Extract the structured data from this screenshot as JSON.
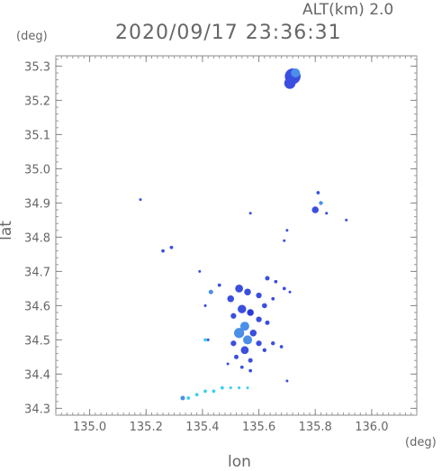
{
  "header": {
    "altitude": "ALT(km)  2.0",
    "datetime": "2020/09/17 23:36:31"
  },
  "chart_data": {
    "type": "heatmap",
    "xlabel": "lon",
    "ylabel": "lat",
    "x_unit": "(deg)",
    "y_unit": "(deg)",
    "xlim": [
      134.88,
      136.16
    ],
    "ylim": [
      34.28,
      35.33
    ],
    "x_ticks": [
      "135.0",
      "135.2",
      "135.4",
      "135.6",
      "135.8",
      "136.0"
    ],
    "y_ticks": [
      "34.3",
      "34.4",
      "34.5",
      "34.6",
      "34.7",
      "34.8",
      "34.9",
      "35.0",
      "35.1",
      "35.2",
      "35.3"
    ],
    "grid": false,
    "colors": {
      "low": "#38d0f0",
      "mid": "#4a8fe8",
      "high": "#3a4fe0",
      "dense": "#2a3ad8",
      "axis": "#888888"
    },
    "cells": [
      {
        "lon": 135.72,
        "lat": 35.27,
        "r": 0.028,
        "level": "high"
      },
      {
        "lon": 135.71,
        "lat": 35.25,
        "r": 0.02,
        "level": "high"
      },
      {
        "lon": 135.73,
        "lat": 35.28,
        "r": 0.016,
        "level": "mid"
      },
      {
        "lon": 135.81,
        "lat": 34.93,
        "r": 0.006,
        "level": "high"
      },
      {
        "lon": 135.8,
        "lat": 34.88,
        "r": 0.012,
        "level": "high"
      },
      {
        "lon": 135.82,
        "lat": 34.9,
        "r": 0.007,
        "level": "mid"
      },
      {
        "lon": 135.84,
        "lat": 34.87,
        "r": 0.005,
        "level": "high"
      },
      {
        "lon": 135.91,
        "lat": 34.85,
        "r": 0.004,
        "level": "high"
      },
      {
        "lon": 135.7,
        "lat": 34.82,
        "r": 0.004,
        "level": "high"
      },
      {
        "lon": 135.69,
        "lat": 34.79,
        "r": 0.004,
        "level": "high"
      },
      {
        "lon": 135.26,
        "lat": 34.76,
        "r": 0.006,
        "level": "high"
      },
      {
        "lon": 135.29,
        "lat": 34.77,
        "r": 0.006,
        "level": "high"
      },
      {
        "lon": 135.63,
        "lat": 34.68,
        "r": 0.008,
        "level": "high"
      },
      {
        "lon": 135.66,
        "lat": 34.67,
        "r": 0.006,
        "level": "high"
      },
      {
        "lon": 135.69,
        "lat": 34.65,
        "r": 0.006,
        "level": "high"
      },
      {
        "lon": 135.71,
        "lat": 34.64,
        "r": 0.004,
        "level": "high"
      },
      {
        "lon": 135.53,
        "lat": 34.65,
        "r": 0.014,
        "level": "high"
      },
      {
        "lon": 135.56,
        "lat": 34.64,
        "r": 0.012,
        "level": "high"
      },
      {
        "lon": 135.5,
        "lat": 34.62,
        "r": 0.012,
        "level": "high"
      },
      {
        "lon": 135.43,
        "lat": 34.64,
        "r": 0.008,
        "level": "mid"
      },
      {
        "lon": 135.46,
        "lat": 34.66,
        "r": 0.006,
        "level": "high"
      },
      {
        "lon": 135.41,
        "lat": 34.6,
        "r": 0.005,
        "level": "high"
      },
      {
        "lon": 135.6,
        "lat": 34.63,
        "r": 0.01,
        "level": "high"
      },
      {
        "lon": 135.62,
        "lat": 34.6,
        "r": 0.009,
        "level": "high"
      },
      {
        "lon": 135.65,
        "lat": 34.62,
        "r": 0.006,
        "level": "high"
      },
      {
        "lon": 135.54,
        "lat": 34.59,
        "r": 0.015,
        "level": "high"
      },
      {
        "lon": 135.57,
        "lat": 34.58,
        "r": 0.012,
        "level": "dense"
      },
      {
        "lon": 135.51,
        "lat": 34.57,
        "r": 0.01,
        "level": "high"
      },
      {
        "lon": 135.6,
        "lat": 34.56,
        "r": 0.01,
        "level": "high"
      },
      {
        "lon": 135.63,
        "lat": 34.55,
        "r": 0.008,
        "level": "high"
      },
      {
        "lon": 135.55,
        "lat": 34.54,
        "r": 0.016,
        "level": "mid"
      },
      {
        "lon": 135.53,
        "lat": 34.52,
        "r": 0.018,
        "level": "mid"
      },
      {
        "lon": 135.56,
        "lat": 34.5,
        "r": 0.016,
        "level": "mid"
      },
      {
        "lon": 135.58,
        "lat": 34.52,
        "r": 0.012,
        "level": "high"
      },
      {
        "lon": 135.51,
        "lat": 34.49,
        "r": 0.01,
        "level": "high"
      },
      {
        "lon": 135.6,
        "lat": 34.49,
        "r": 0.01,
        "level": "high"
      },
      {
        "lon": 135.55,
        "lat": 34.47,
        "r": 0.014,
        "level": "high"
      },
      {
        "lon": 135.62,
        "lat": 34.47,
        "r": 0.007,
        "level": "high"
      },
      {
        "lon": 135.65,
        "lat": 34.49,
        "r": 0.007,
        "level": "high"
      },
      {
        "lon": 135.68,
        "lat": 34.48,
        "r": 0.006,
        "level": "high"
      },
      {
        "lon": 135.52,
        "lat": 34.45,
        "r": 0.008,
        "level": "high"
      },
      {
        "lon": 135.57,
        "lat": 34.44,
        "r": 0.008,
        "level": "high"
      },
      {
        "lon": 135.41,
        "lat": 34.5,
        "r": 0.006,
        "level": "low"
      },
      {
        "lon": 135.42,
        "lat": 34.5,
        "r": 0.004,
        "level": "high"
      },
      {
        "lon": 135.54,
        "lat": 34.42,
        "r": 0.006,
        "level": "high"
      },
      {
        "lon": 135.57,
        "lat": 34.41,
        "r": 0.006,
        "level": "high"
      },
      {
        "lon": 135.49,
        "lat": 34.43,
        "r": 0.004,
        "level": "high"
      },
      {
        "lon": 135.7,
        "lat": 34.38,
        "r": 0.003,
        "level": "high"
      },
      {
        "lon": 135.33,
        "lat": 34.33,
        "r": 0.008,
        "level": "mid"
      },
      {
        "lon": 135.35,
        "lat": 34.33,
        "r": 0.006,
        "level": "low"
      },
      {
        "lon": 135.38,
        "lat": 34.34,
        "r": 0.006,
        "level": "low"
      },
      {
        "lon": 135.41,
        "lat": 34.35,
        "r": 0.006,
        "level": "low"
      },
      {
        "lon": 135.44,
        "lat": 34.35,
        "r": 0.006,
        "level": "low"
      },
      {
        "lon": 135.47,
        "lat": 34.36,
        "r": 0.006,
        "level": "low"
      },
      {
        "lon": 135.5,
        "lat": 34.36,
        "r": 0.005,
        "level": "low"
      },
      {
        "lon": 135.53,
        "lat": 34.36,
        "r": 0.005,
        "level": "low"
      },
      {
        "lon": 135.56,
        "lat": 34.36,
        "r": 0.004,
        "level": "low"
      },
      {
        "lon": 135.18,
        "lat": 34.91,
        "r": 0.002,
        "level": "high"
      },
      {
        "lon": 135.57,
        "lat": 34.87,
        "r": 0.002,
        "level": "high"
      },
      {
        "lon": 135.39,
        "lat": 34.7,
        "r": 0.002,
        "level": "high"
      }
    ]
  }
}
